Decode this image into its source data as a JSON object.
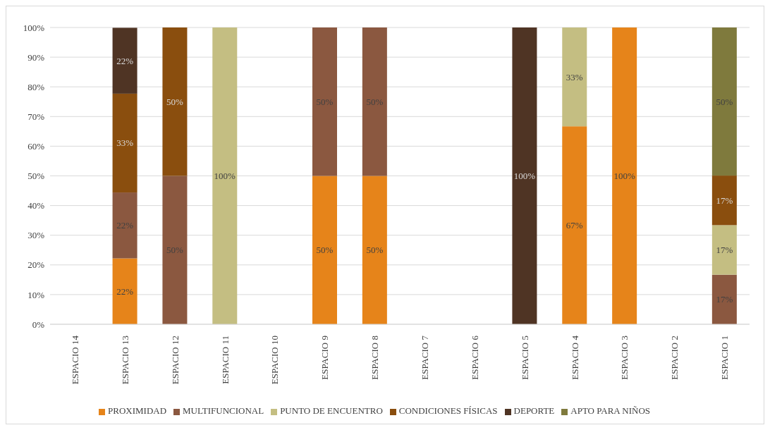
{
  "chart_data": {
    "type": "bar",
    "stacked": true,
    "categories": [
      "ESPACIO 14",
      "ESPACIO 13",
      "ESPACIO 12",
      "ESPACIO 11",
      "ESPACIO 10",
      "ESPACIO 9",
      "ESPACIO 8",
      "ESPACIO 7",
      "ESPACIO 6",
      "ESPACIO 5",
      "ESPACIO 4",
      "ESPACIO 3",
      "ESPACIO 2",
      "ESPACIO 1"
    ],
    "series": [
      {
        "name": "PROXIMIDAD",
        "color": "#e6841a",
        "values": [
          null,
          22.2,
          null,
          null,
          null,
          50,
          50,
          null,
          null,
          null,
          66.7,
          100,
          null,
          null
        ],
        "value_labels": [
          null,
          "22%",
          null,
          null,
          null,
          "50%",
          "50%",
          null,
          null,
          null,
          "67%",
          "100%",
          null,
          null
        ]
      },
      {
        "name": "MULTIFUNCIONAL",
        "color": "#8b5840",
        "values": [
          null,
          22.2,
          50,
          null,
          null,
          50,
          50,
          null,
          null,
          null,
          null,
          null,
          null,
          16.7
        ],
        "value_labels": [
          null,
          "22%",
          "50%",
          null,
          null,
          "50%",
          "50%",
          null,
          null,
          null,
          null,
          null,
          null,
          "17%"
        ]
      },
      {
        "name": "PUNTO DE ENCUENTRO",
        "color": "#c4be82",
        "values": [
          null,
          null,
          null,
          100,
          null,
          null,
          null,
          null,
          null,
          null,
          33.3,
          null,
          null,
          16.7
        ],
        "value_labels": [
          null,
          null,
          null,
          "100%",
          null,
          null,
          null,
          null,
          null,
          null,
          "33%",
          null,
          null,
          "17%"
        ]
      },
      {
        "name": "CONDICIONES FÍSICAS",
        "color": "#8a4e0e",
        "values": [
          null,
          33.3,
          50,
          null,
          null,
          null,
          null,
          null,
          null,
          null,
          null,
          null,
          null,
          16.7
        ],
        "value_labels": [
          null,
          "33%",
          "50%",
          null,
          null,
          null,
          null,
          null,
          null,
          null,
          null,
          null,
          null,
          "17%"
        ]
      },
      {
        "name": "DEPORTE",
        "color": "#4f3424",
        "values": [
          null,
          22.2,
          null,
          null,
          null,
          null,
          null,
          null,
          null,
          100,
          null,
          null,
          null,
          null
        ],
        "value_labels": [
          null,
          "22%",
          null,
          null,
          null,
          null,
          null,
          null,
          null,
          "100%",
          null,
          null,
          null,
          null
        ]
      },
      {
        "name": "APTO PARA NIÑOS",
        "color": "#7f7a3d",
        "values": [
          null,
          null,
          null,
          null,
          null,
          null,
          null,
          null,
          null,
          null,
          null,
          null,
          null,
          50
        ],
        "value_labels": [
          null,
          null,
          null,
          null,
          null,
          null,
          null,
          null,
          null,
          null,
          null,
          null,
          null,
          "50%"
        ]
      }
    ],
    "ylim": [
      0,
      100
    ],
    "yticks": [
      {
        "value": 0,
        "label": "0%"
      },
      {
        "value": 10,
        "label": "10%"
      },
      {
        "value": 20,
        "label": "20%"
      },
      {
        "value": 30,
        "label": "30%"
      },
      {
        "value": 40,
        "label": "40%"
      },
      {
        "value": 50,
        "label": "50%"
      },
      {
        "value": 60,
        "label": "60%"
      },
      {
        "value": 70,
        "label": "70%"
      },
      {
        "value": 80,
        "label": "80%"
      },
      {
        "value": 90,
        "label": "90%"
      },
      {
        "value": 100,
        "label": "100%"
      }
    ],
    "grid": "y",
    "legend": "bottom"
  }
}
